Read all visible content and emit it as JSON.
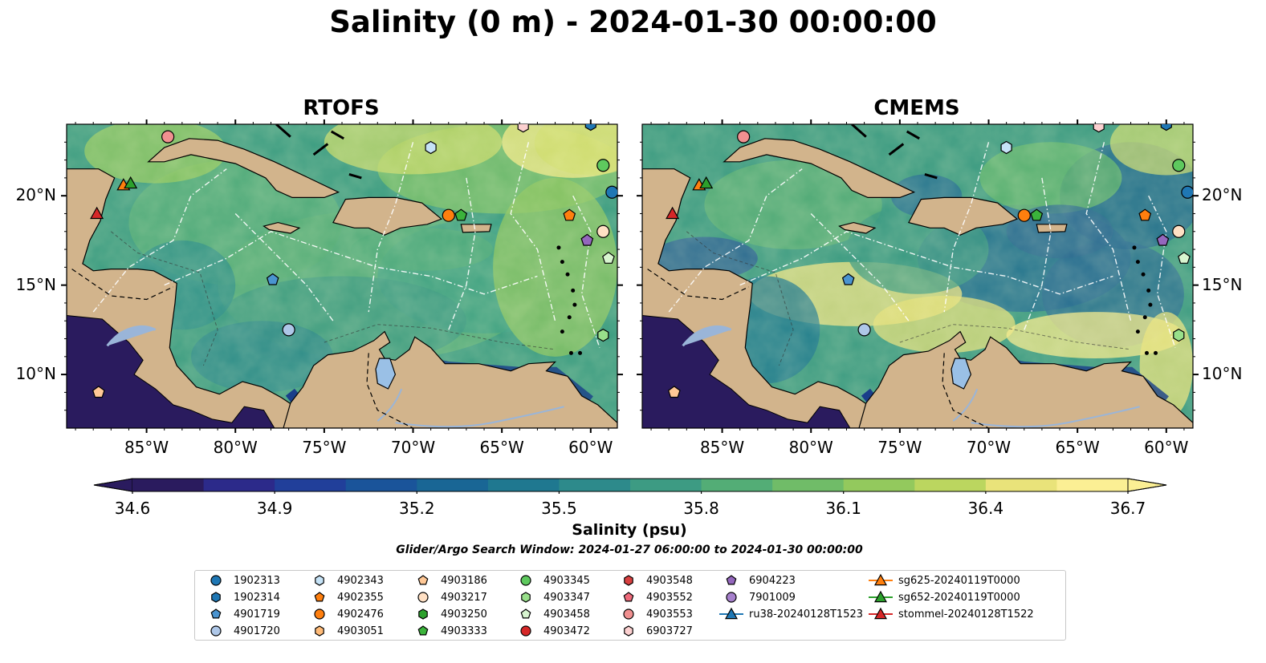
{
  "title": "Salinity (0 m) - 2024-01-30 00:00:00",
  "panels": [
    {
      "id": "rtofs",
      "title": "RTOFS"
    },
    {
      "id": "cmems",
      "title": "CMEMS"
    }
  ],
  "axes": {
    "lon_labels": [
      "85°W",
      "80°W",
      "75°W",
      "70°W",
      "65°W",
      "60°W"
    ],
    "lat_labels": [
      "20°N",
      "15°N",
      "10°N"
    ],
    "lon_values": [
      -85,
      -80,
      -75,
      -70,
      -65,
      -60
    ],
    "lat_values": [
      20,
      15,
      10
    ],
    "lon_range": [
      -89.5,
      -58.5
    ],
    "lat_range": [
      7,
      24
    ]
  },
  "colorbar": {
    "label": "Salinity (psu)",
    "tick_labels": [
      "34.6",
      "34.9",
      "35.2",
      "35.5",
      "35.8",
      "36.1",
      "36.4",
      "36.7"
    ],
    "min": 34.6,
    "max": 36.7,
    "extend": "both",
    "colormap": "haline",
    "colors": [
      "#2a1b5e",
      "#2c2a8a",
      "#213f9a",
      "#1a549a",
      "#196695",
      "#1f7890",
      "#2d8a8b",
      "#3d9b83",
      "#53ad76",
      "#70bc68",
      "#93c95d",
      "#bbd65f",
      "#e9e37a",
      "#fbef94"
    ]
  },
  "search_window": "Glider/Argo Search Window: 2024-01-27 06:00:00 to 2024-01-30 00:00:00",
  "colors": {
    "land": "#d2b48c",
    "lake": "#9ac0e6",
    "ocean_low": "#2a1b5e"
  },
  "legend": [
    {
      "label": "1902313",
      "marker": "circle",
      "color": "#1f77b4"
    },
    {
      "label": "1902314",
      "marker": "hexagon",
      "color": "#1f77b4"
    },
    {
      "label": "4901719",
      "marker": "pentagon",
      "color": "#4a94d0"
    },
    {
      "label": "4901720",
      "marker": "circle",
      "color": "#aec7e8"
    },
    {
      "label": "4902343",
      "marker": "hexagon",
      "color": "#c6e3f7"
    },
    {
      "label": "4902355",
      "marker": "pentagon",
      "color": "#ff7f0e"
    },
    {
      "label": "4902476",
      "marker": "circle",
      "color": "#ff7f0e"
    },
    {
      "label": "4903051",
      "marker": "hexagon",
      "color": "#ffbb78"
    },
    {
      "label": "4903186",
      "marker": "pentagon",
      "color": "#ffc896"
    },
    {
      "label": "4903217",
      "marker": "circle",
      "color": "#ffe0c4"
    },
    {
      "label": "4903250",
      "marker": "hexagon",
      "color": "#2ca02c"
    },
    {
      "label": "4903333",
      "marker": "pentagon",
      "color": "#3bb33b"
    },
    {
      "label": "4903345",
      "marker": "circle",
      "color": "#5ec95e"
    },
    {
      "label": "4903347",
      "marker": "hexagon",
      "color": "#98df8a"
    },
    {
      "label": "4903458",
      "marker": "pentagon",
      "color": "#d8f5d0"
    },
    {
      "label": "4903472",
      "marker": "circle",
      "color": "#d62728"
    },
    {
      "label": "4903548",
      "marker": "hexagon",
      "color": "#d94040"
    },
    {
      "label": "4903552",
      "marker": "pentagon",
      "color": "#ee6a7a"
    },
    {
      "label": "4903553",
      "marker": "circle",
      "color": "#f09090"
    },
    {
      "label": "6903727",
      "marker": "hexagon",
      "color": "#fcd0d0"
    },
    {
      "label": "6904223",
      "marker": "pentagon",
      "color": "#9467bd"
    },
    {
      "label": "7901009",
      "marker": "circle",
      "color": "#a680cc"
    },
    {
      "label": "ru38-20240128T1523",
      "marker": "triangle-line",
      "color": "#1f77b4"
    },
    {
      "label": "sg625-20240119T0000",
      "marker": "triangle-line",
      "color": "#ff7f0e"
    },
    {
      "label": "sg652-20240119T0000",
      "marker": "triangle-line",
      "color": "#2ca02c"
    },
    {
      "label": "stommel-20240128T1522",
      "marker": "triangle-line",
      "color": "#d62728"
    }
  ],
  "markers": [
    {
      "id": "1902313",
      "lon": -58.8,
      "lat": 20.2
    },
    {
      "id": "1902314",
      "lon": -60.0,
      "lat": 24.0
    },
    {
      "id": "4901719",
      "lon": -77.9,
      "lat": 15.3
    },
    {
      "id": "4901720",
      "lon": -77.0,
      "lat": 12.5
    },
    {
      "id": "4902343",
      "lon": -69.0,
      "lat": 22.7
    },
    {
      "id": "4902355",
      "lon": -61.2,
      "lat": 18.9
    },
    {
      "id": "4902476",
      "lon": -68.0,
      "lat": 18.9
    },
    {
      "id": "4903186",
      "lon": -87.7,
      "lat": 9.0
    },
    {
      "id": "4903217",
      "lon": -59.3,
      "lat": 18.0
    },
    {
      "id": "4903333",
      "lon": -67.3,
      "lat": 18.9
    },
    {
      "id": "4903345",
      "lon": -59.3,
      "lat": 21.7
    },
    {
      "id": "4903458",
      "lon": -59.0,
      "lat": 16.5
    },
    {
      "id": "4903553",
      "lon": -83.8,
      "lat": 23.3
    },
    {
      "id": "6903727",
      "lon": -63.8,
      "lat": 23.9
    },
    {
      "id": "6904223",
      "lon": -60.2,
      "lat": 17.5
    },
    {
      "id": "4903347",
      "lon": -59.3,
      "lat": 12.2
    },
    {
      "id": "sg625-20240119T0000",
      "lon": -86.3,
      "lat": 20.6
    },
    {
      "id": "sg652-20240119T0000",
      "lon": -85.9,
      "lat": 20.7
    },
    {
      "id": "stommel-20240128T1522",
      "lon": -87.8,
      "lat": 19.0
    }
  ]
}
